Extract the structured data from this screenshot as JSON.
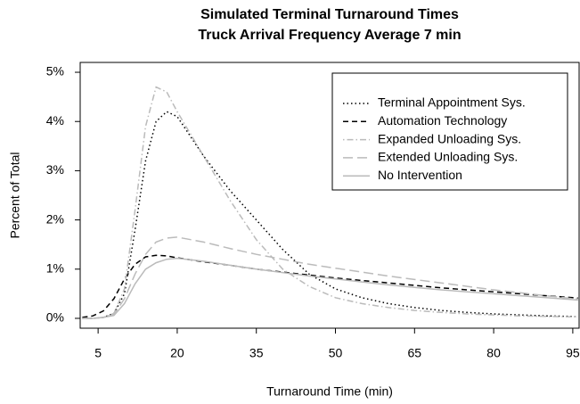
{
  "chart_data": {
    "type": "line",
    "title": "Simulated Terminal Turnaround Times",
    "subtitle": "Truck Arrival Frequency Average 7 min",
    "x_label": "Turnaround Time (min)",
    "y_label": "Percent of Total",
    "x": [
      2,
      4,
      6,
      8,
      10,
      12,
      14,
      16,
      18,
      20,
      25,
      30,
      35,
      40,
      45,
      50,
      55,
      60,
      65,
      70,
      75,
      80,
      85,
      90,
      95,
      96
    ],
    "series": [
      {
        "name": "Terminal Appointment Sys.",
        "color": "#000000",
        "dash": "1.5,3",
        "values": [
          0,
          0,
          0.02,
          0.1,
          0.5,
          1.8,
          3.2,
          4.0,
          4.2,
          4.1,
          3.3,
          2.6,
          2.0,
          1.4,
          0.9,
          0.6,
          0.42,
          0.3,
          0.22,
          0.16,
          0.12,
          0.09,
          0.07,
          0.05,
          0.04,
          0.03
        ]
      },
      {
        "name": "Automation Technology",
        "color": "#000000",
        "dash": "6,4",
        "values": [
          0.02,
          0.05,
          0.15,
          0.4,
          0.8,
          1.1,
          1.25,
          1.28,
          1.27,
          1.23,
          1.15,
          1.08,
          1.0,
          0.94,
          0.88,
          0.82,
          0.77,
          0.72,
          0.67,
          0.62,
          0.58,
          0.54,
          0.5,
          0.46,
          0.42,
          0.41
        ]
      },
      {
        "name": "Expanded Unloading Sys.",
        "color": "#bbbbbb",
        "dash": "1.5,3,7,3",
        "values": [
          0,
          0,
          0.02,
          0.1,
          0.6,
          2.2,
          3.9,
          4.7,
          4.6,
          4.2,
          3.3,
          2.4,
          1.6,
          1.0,
          0.65,
          0.42,
          0.3,
          0.22,
          0.16,
          0.12,
          0.09,
          0.07,
          0.05,
          0.04,
          0.03,
          0.03
        ]
      },
      {
        "name": "Extended Unloading Sys.",
        "color": "#bbbbbb",
        "dash": "11,5",
        "values": [
          0,
          0,
          0.02,
          0.08,
          0.4,
          0.9,
          1.3,
          1.55,
          1.63,
          1.65,
          1.55,
          1.42,
          1.3,
          1.2,
          1.1,
          1.02,
          0.94,
          0.86,
          0.79,
          0.72,
          0.65,
          0.58,
          0.52,
          0.46,
          0.4,
          0.39
        ]
      },
      {
        "name": "No Intervention",
        "color": "#bbbbbb",
        "dash": "none",
        "values": [
          0,
          0,
          0.02,
          0.06,
          0.3,
          0.7,
          1.0,
          1.13,
          1.2,
          1.22,
          1.16,
          1.08,
          1.0,
          0.93,
          0.86,
          0.8,
          0.74,
          0.68,
          0.63,
          0.58,
          0.54,
          0.5,
          0.46,
          0.42,
          0.38,
          0.37
        ]
      }
    ],
    "xlim": [
      1.6,
      96.2
    ],
    "ylim": [
      -0.2,
      5.2
    ],
    "xticks": [
      5,
      20,
      35,
      50,
      65,
      80,
      95
    ],
    "yticks": [
      {
        "value": 0,
        "label": "0%"
      },
      {
        "value": 1,
        "label": "1%"
      },
      {
        "value": 2,
        "label": "2%"
      },
      {
        "value": 3,
        "label": "3%"
      },
      {
        "value": 4,
        "label": "4%"
      },
      {
        "value": 5,
        "label": "5%"
      }
    ],
    "legend": "topright"
  }
}
